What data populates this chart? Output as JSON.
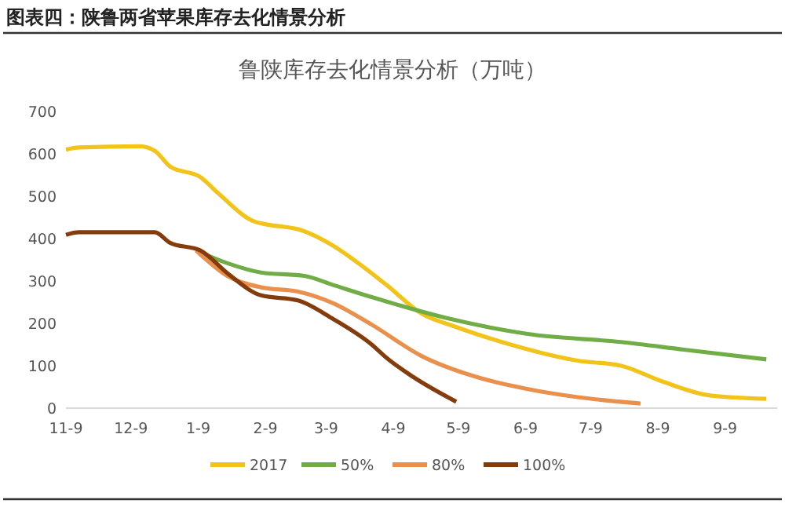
{
  "chart_data": {
    "type": "line",
    "title": "图表四：陕鲁两省苹果库存去化情景分析",
    "subtitle": "鲁陕库存去化情景分析（万吨）",
    "xlim": [
      "2017-11-09",
      "2018-10-03"
    ],
    "xticks": [
      {
        "value": "2017-11-09",
        "label": "11-9"
      },
      {
        "value": "2017-12-09",
        "label": "12-9"
      },
      {
        "value": "2018-01-09",
        "label": "1-9"
      },
      {
        "value": "2018-02-09",
        "label": "2-9"
      },
      {
        "value": "2018-03-09",
        "label": "3-9"
      },
      {
        "value": "2018-04-09",
        "label": "4-9"
      },
      {
        "value": "2018-05-09",
        "label": "5-9"
      },
      {
        "value": "2018-06-09",
        "label": "6-9"
      },
      {
        "value": "2018-07-09",
        "label": "7-9"
      },
      {
        "value": "2018-08-09",
        "label": "8-9"
      },
      {
        "value": "2018-09-09",
        "label": "9-9"
      }
    ],
    "ylim": [
      0,
      700
    ],
    "yticks": [
      0,
      100,
      200,
      300,
      400,
      500,
      600,
      700
    ],
    "grid": false,
    "legend": "bottom",
    "marker": "none",
    "line_style": "solid",
    "series": [
      {
        "name": "2017",
        "color": "#f2c318",
        "x": [
          "2017-11-09",
          "2017-11-15",
          "2017-12-13",
          "2017-12-20",
          "2017-12-27",
          "2018-01-10",
          "2018-01-18",
          "2018-02-04",
          "2018-02-09",
          "2018-02-26",
          "2018-03-12",
          "2018-03-27",
          "2018-04-06",
          "2018-04-22",
          "2018-05-07",
          "2018-05-29",
          "2018-07-03",
          "2018-07-23",
          "2018-08-11",
          "2018-09-02",
          "2018-09-28"
        ],
        "values": [
          610,
          615,
          618,
          607,
          570,
          545,
          508,
          440,
          434,
          419,
          384,
          330,
          290,
          223,
          193,
          156,
          112,
          100,
          63,
          30,
          22
        ]
      },
      {
        "name": "50%",
        "color": "#70ad47",
        "x": [
          "2018-01-08",
          "2018-01-23",
          "2018-02-07",
          "2018-02-27",
          "2018-03-12",
          "2018-03-30",
          "2018-05-04",
          "2018-06-10",
          "2018-07-23",
          "2018-08-21",
          "2018-09-28"
        ],
        "values": [
          372,
          341,
          320,
          312,
          291,
          262,
          212,
          175,
          156,
          138,
          115
        ]
      },
      {
        "name": "80%",
        "color": "#e8904c",
        "x": [
          "2018-01-08",
          "2018-01-23",
          "2018-02-07",
          "2018-02-24",
          "2018-03-12",
          "2018-03-30",
          "2018-04-22",
          "2018-05-17",
          "2018-06-10",
          "2018-07-03",
          "2018-08-01"
        ],
        "values": [
          372,
          310,
          285,
          275,
          248,
          197,
          123,
          74,
          45,
          26,
          11
        ]
      },
      {
        "name": "100%",
        "color": "#843c0c",
        "x": [
          "2017-11-09",
          "2017-11-15",
          "2017-12-20",
          "2017-12-27",
          "2018-01-10",
          "2018-01-23",
          "2018-02-07",
          "2018-02-24",
          "2018-03-12",
          "2018-03-30",
          "2018-04-06",
          "2018-04-18",
          "2018-05-08"
        ],
        "values": [
          409,
          415,
          415,
          390,
          372,
          316,
          266,
          254,
          211,
          150,
          118,
          74,
          15
        ]
      }
    ]
  }
}
